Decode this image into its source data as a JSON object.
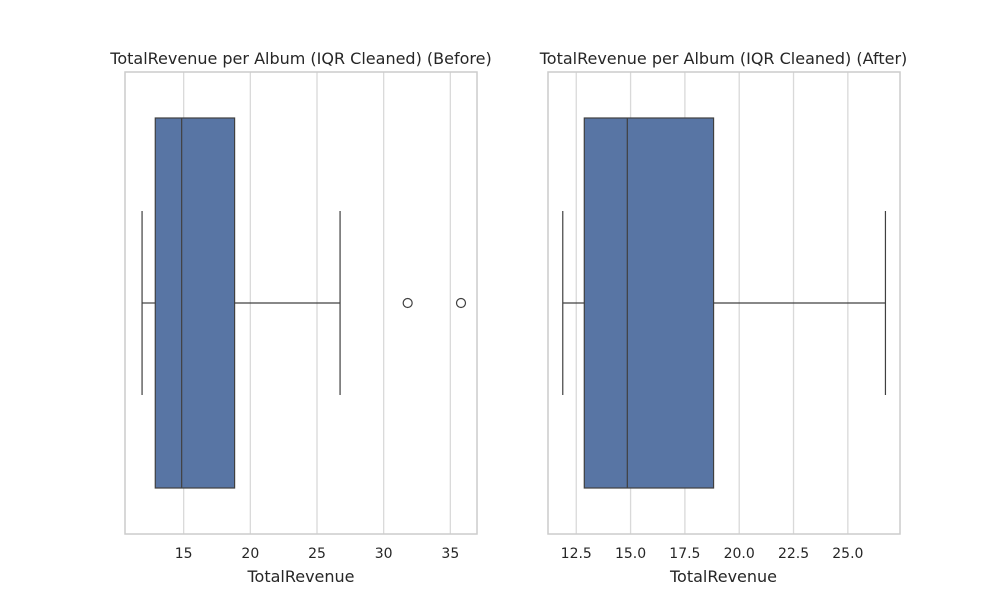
{
  "chart_data": [
    {
      "type": "box",
      "orientation": "horizontal",
      "title": "TotalRevenue per Album (IQR Cleaned) (Before)",
      "xlabel": "TotalRevenue",
      "ylabel": "",
      "xlim": [
        10.6,
        37.0
      ],
      "ticks": [
        15,
        20,
        25,
        30,
        35
      ],
      "tick_labels": [
        "15",
        "20",
        "25",
        "30",
        "35"
      ],
      "grid": "x",
      "color": "#5875a4",
      "box": {
        "whisker_low": 11.88,
        "q1": 12.87,
        "median": 14.85,
        "q3": 18.82,
        "whisker_high": 26.73,
        "outliers": [
          31.8,
          35.8
        ]
      }
    },
    {
      "type": "box",
      "orientation": "horizontal",
      "title": "TotalRevenue per Album (IQR Cleaned) (After)",
      "xlabel": "TotalRevenue",
      "ylabel": "",
      "xlim": [
        11.2,
        27.4
      ],
      "ticks": [
        12.5,
        15,
        17.5,
        20,
        22.5,
        25
      ],
      "tick_labels": [
        "12.5",
        "15.0",
        "17.5",
        "20.0",
        "22.5",
        "25.0"
      ],
      "grid": "x",
      "color": "#5875a4",
      "box": {
        "whisker_low": 11.88,
        "q1": 12.87,
        "median": 14.85,
        "q3": 18.82,
        "whisker_high": 26.73,
        "outliers": []
      }
    }
  ]
}
